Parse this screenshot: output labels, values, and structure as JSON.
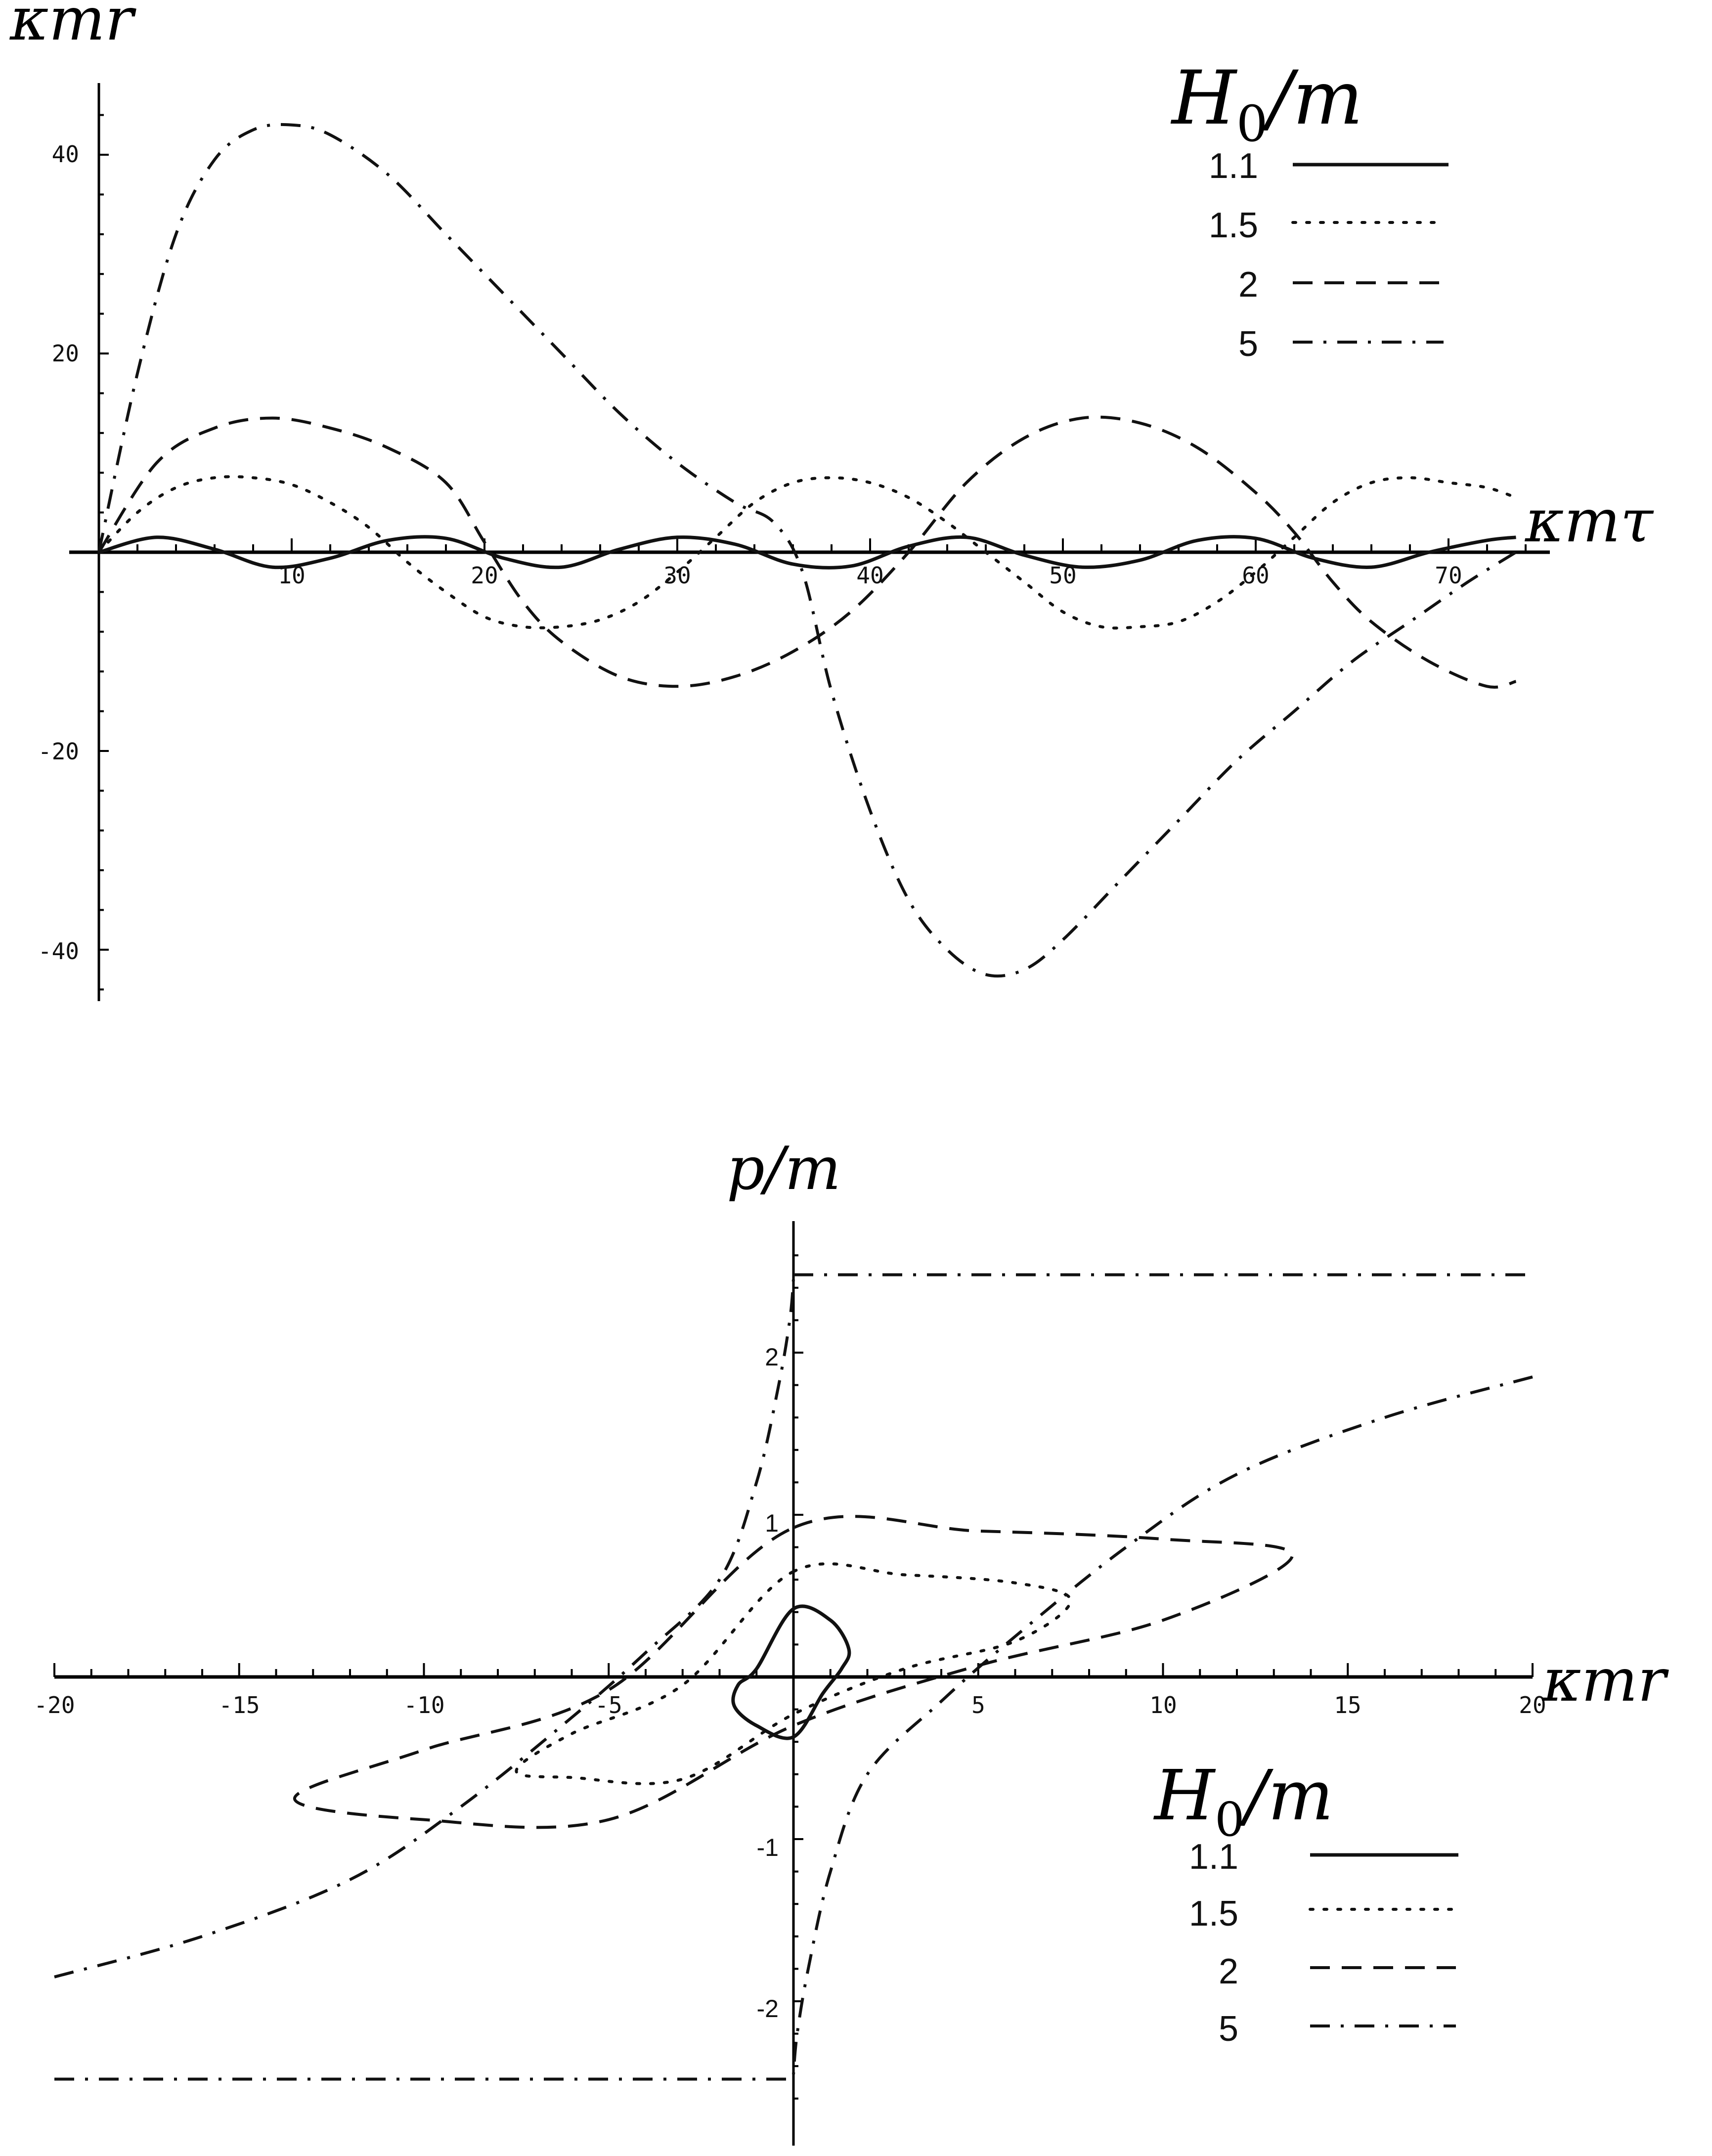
{
  "chart_data": [
    {
      "type": "line",
      "title": "",
      "xlabel": "κmτ",
      "ylabel": "κmr",
      "xlim": [
        0,
        75
      ],
      "ylim": [
        -45,
        47
      ],
      "x_ticks": [
        10,
        20,
        30,
        40,
        50,
        60,
        70
      ],
      "y_ticks": [
        -40,
        -20,
        20,
        40
      ],
      "grid": false,
      "legend": {
        "title": "H0/m",
        "position": "top-right",
        "entries": [
          {
            "label": "1.1",
            "style": "solid"
          },
          {
            "label": "1.5",
            "style": "dotted"
          },
          {
            "label": "2",
            "style": "dashed"
          },
          {
            "label": "5",
            "style": "dash-dot"
          }
        ]
      },
      "series": [
        {
          "name": "1.1",
          "style": "solid",
          "x": [
            0,
            3,
            6,
            9,
            12,
            15,
            18,
            21,
            24,
            27,
            30,
            33,
            36,
            39,
            42,
            45,
            48,
            51,
            54,
            57,
            60,
            63,
            66,
            69,
            72,
            73.5
          ],
          "y": [
            0,
            1.5,
            0.3,
            -1.5,
            -0.6,
            1.2,
            1.4,
            -0.6,
            -1.5,
            0.3,
            1.5,
            0.8,
            -1.2,
            -1.4,
            0.6,
            1.5,
            -0.3,
            -1.5,
            -0.8,
            1.2,
            1.4,
            -0.6,
            -1.5,
            0.0,
            1.2,
            1.5
          ]
        },
        {
          "name": "1.5",
          "style": "dotted",
          "x": [
            0,
            2,
            4,
            6,
            8,
            10,
            12,
            14,
            16,
            18,
            20,
            22,
            24,
            26,
            28,
            30,
            32,
            34,
            36,
            38,
            40,
            42,
            44,
            46,
            48,
            50,
            52,
            54,
            56,
            58,
            60,
            62,
            64,
            66,
            68,
            70,
            72,
            73.5
          ],
          "y": [
            0,
            4,
            6.5,
            7.5,
            7.5,
            6.8,
            5,
            2.5,
            -1,
            -4,
            -6.5,
            -7.5,
            -7.5,
            -6.8,
            -5,
            -2,
            1.5,
            5,
            7,
            7.5,
            7,
            5.5,
            3,
            0,
            -3,
            -6,
            -7.5,
            -7.5,
            -7,
            -5,
            -2,
            1.5,
            5,
            7,
            7.5,
            7,
            6.5,
            5.5
          ]
        },
        {
          "name": "2",
          "style": "dashed",
          "x": [
            0,
            3,
            6,
            9,
            12,
            15,
            18,
            20,
            22,
            24,
            27,
            30,
            33,
            36,
            39,
            42,
            45,
            48,
            51,
            54,
            57,
            60,
            62,
            64,
            66,
            69,
            72,
            73.5
          ],
          "y": [
            0,
            9,
            12.5,
            13.5,
            12.5,
            10.5,
            7,
            1,
            -5,
            -9,
            -12.5,
            -13.5,
            -12.5,
            -10,
            -6,
            0,
            7,
            11.5,
            13.5,
            13,
            10.5,
            6,
            2,
            -3,
            -7,
            -11,
            -13.5,
            -13
          ]
        },
        {
          "name": "5",
          "style": "dash-dot",
          "x": [
            0,
            2,
            4,
            6,
            8,
            10,
            12,
            15,
            18,
            21,
            24,
            27,
            30,
            33,
            35,
            36.5,
            38,
            40,
            42,
            44,
            46,
            48,
            50,
            53,
            56,
            59,
            62,
            65,
            68,
            71,
            73.5
          ],
          "y": [
            0,
            18,
            32,
            39.5,
            42.5,
            43,
            42,
            38,
            32,
            26,
            20,
            14,
            9,
            5,
            3,
            -2,
            -14,
            -26,
            -35,
            -40,
            -42.5,
            -42,
            -39,
            -33,
            -27,
            -21,
            -16,
            -11,
            -7,
            -3,
            0
          ]
        }
      ]
    },
    {
      "type": "line",
      "title": "",
      "xlabel": "κmr",
      "ylabel": "p/m",
      "xlim": [
        -20,
        20
      ],
      "ylim": [
        -2.6,
        2.75
      ],
      "x_ticks": [
        -20,
        -15,
        -10,
        -5,
        5,
        10,
        15,
        20
      ],
      "y_ticks": [
        -2,
        -1,
        1,
        2
      ],
      "grid": false,
      "legend": {
        "title": "H0/m",
        "position": "bottom-right",
        "entries": [
          {
            "label": "1.1",
            "style": "solid"
          },
          {
            "label": "1.5",
            "style": "dotted"
          },
          {
            "label": "2",
            "style": "dashed"
          },
          {
            "label": "5",
            "style": "dash-dot"
          }
        ]
      },
      "series": [
        {
          "name": "1.1",
          "style": "solid",
          "closed": true,
          "x": [
            0,
            1,
            1.5,
            1.3,
            0.8,
            0,
            -1,
            -1.6,
            -1.5,
            -1.0,
            0
          ],
          "y": [
            0.42,
            0.35,
            0.17,
            0.05,
            -0.1,
            -0.37,
            -0.3,
            -0.18,
            -0.05,
            0.05,
            0.42
          ]
        },
        {
          "name": "1.5",
          "style": "dotted",
          "closed": true,
          "x": [
            0,
            3,
            6,
            7.5,
            6,
            3,
            0,
            -3,
            -6,
            -7.5,
            -6,
            -3,
            0
          ],
          "y": [
            0.65,
            0.63,
            0.58,
            0.47,
            0.22,
            0.05,
            -0.23,
            -0.63,
            -0.62,
            -0.58,
            -0.35,
            -0.05,
            0.65
          ]
        },
        {
          "name": "2",
          "style": "dashed",
          "closed": true,
          "x": [
            0,
            5,
            10,
            13.5,
            10,
            5,
            0,
            -5,
            -10,
            -13.5,
            -10,
            -5,
            0
          ],
          "y": [
            0.92,
            0.9,
            0.85,
            0.75,
            0.35,
            0.07,
            -0.3,
            -0.88,
            -0.88,
            -0.75,
            -0.45,
            -0.08,
            0.92
          ]
        },
        {
          "name": "5",
          "style": "dash-dot",
          "x": [
            -20,
            -16,
            -12,
            -9,
            -6,
            -4,
            -2,
            -1,
            -0.4,
            -0.1,
            0
          ],
          "y": [
            -1.85,
            -1.6,
            -1.25,
            -0.8,
            -0.25,
            0.15,
            0.6,
            1.2,
            1.8,
            2.2,
            2.45
          ]
        },
        {
          "name": "5-lower",
          "style": "dash-dot",
          "x": [
            20,
            16,
            12,
            9,
            6,
            4,
            2,
            1,
            0.4,
            0.1,
            0
          ],
          "y": [
            1.85,
            1.6,
            1.25,
            0.8,
            0.25,
            -0.15,
            -0.6,
            -1.2,
            -1.8,
            -2.2,
            -2.45
          ]
        },
        {
          "name": "5-top-asymptote",
          "style": "dash-dot",
          "x": [
            0,
            20
          ],
          "y": [
            2.48,
            2.48
          ]
        },
        {
          "name": "5-bottom-asymptote",
          "style": "dash-dot",
          "x": [
            -20,
            0
          ],
          "y": [
            -2.48,
            -2.48
          ]
        }
      ]
    }
  ],
  "top_chart": {
    "y_axis_label": "κmr",
    "x_axis_label": "κmτ",
    "legend_title_main": "H",
    "legend_title_sub": "0",
    "legend_title_tail": "/m",
    "x_ticks": [
      "10",
      "20",
      "30",
      "40",
      "50",
      "60",
      "70"
    ],
    "y_ticks": [
      "40",
      "20",
      "-20",
      "-40"
    ],
    "legend": [
      "1.1",
      "1.5",
      "2",
      "5"
    ]
  },
  "bottom_chart": {
    "y_axis_label": "p/m",
    "x_axis_label": "κmr",
    "legend_title_main": "H",
    "legend_title_sub": "0",
    "legend_title_tail": "/m",
    "x_ticks": [
      "-20",
      "-15",
      "-10",
      "-5",
      "5",
      "10",
      "15",
      "20"
    ],
    "y_ticks": [
      "2",
      "1",
      "-1",
      "-2"
    ],
    "legend": [
      "1.1",
      "1.5",
      "2",
      "5"
    ]
  }
}
